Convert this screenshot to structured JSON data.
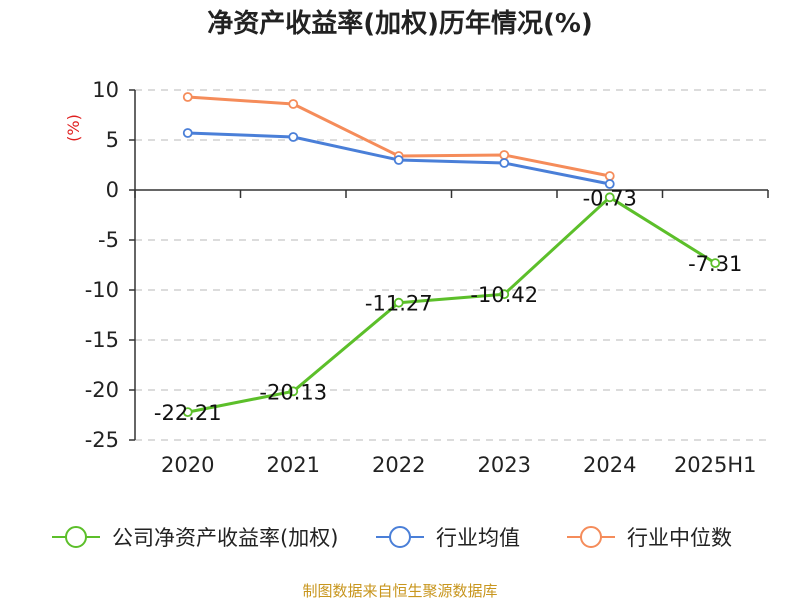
{
  "chart_data": {
    "type": "line",
    "title": "净资产收益率(加权)历年情况(%)",
    "ylabel": "(%)",
    "categories": [
      "2020",
      "2021",
      "2022",
      "2023",
      "2024",
      "2025H1"
    ],
    "ylim": [
      -25,
      10
    ],
    "yticks": [
      10,
      5,
      0,
      -5,
      -10,
      -15,
      -20,
      -25
    ],
    "grid": true,
    "legend_position": "bottom",
    "series": [
      {
        "name": "公司净资产收益率(加权)",
        "color": "#5cbf2a",
        "values": [
          -22.21,
          -20.13,
          -11.27,
          -10.42,
          -0.73,
          -7.31
        ],
        "labels": [
          "-22.21",
          "-20.13",
          "-11.27",
          "-10.42",
          "-0.73",
          "-7.31"
        ]
      },
      {
        "name": "行业均值",
        "color": "#4a7fd8",
        "values": [
          5.7,
          5.3,
          3.0,
          2.7,
          0.6,
          null
        ]
      },
      {
        "name": "行业中位数",
        "color": "#f58c5a",
        "values": [
          9.3,
          8.6,
          3.4,
          3.5,
          1.4,
          null
        ]
      }
    ]
  },
  "source_note": "制图数据来自恒生聚源数据库"
}
